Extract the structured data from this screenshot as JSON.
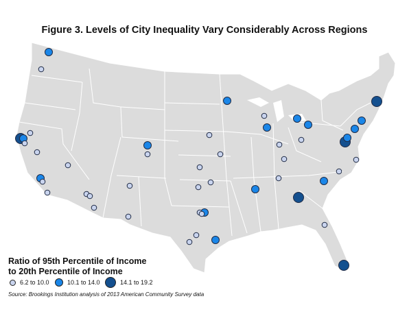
{
  "title": "Figure 3. Levels of City Inequality Vary Considerably Across Regions",
  "legend": {
    "title_line1": "Ratio of 95th Percentile of Income",
    "title_line2": "to 20th Percentile of Income",
    "items": [
      {
        "label": "6.2 to 10.0",
        "color": "#c9d4ee"
      },
      {
        "label": "10.1 to 14.0",
        "color": "#1a86e8"
      },
      {
        "label": "14.1 to 19.2",
        "color": "#14508f"
      }
    ]
  },
  "source": "Source: Brookings Institution analysis of 2013 American Community Survey data",
  "colors": {
    "land": "#dcdcdc",
    "border": "#ffffff",
    "outline": "#1f2a44"
  }
}
